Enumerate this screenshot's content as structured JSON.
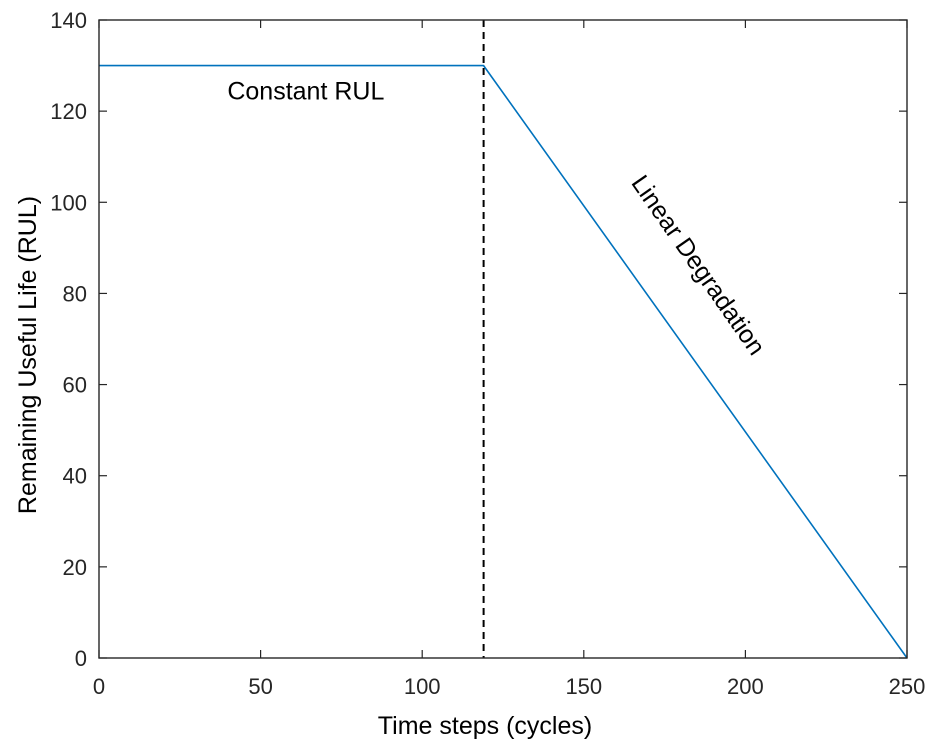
{
  "chart_data": {
    "type": "line",
    "xlabel": "Time steps (cycles)",
    "ylabel": "Remaining Useful Life (RUL)",
    "xlim": [
      0,
      250
    ],
    "ylim": [
      0,
      140
    ],
    "xticks": [
      0,
      50,
      100,
      150,
      200,
      250
    ],
    "yticks": [
      0,
      20,
      40,
      60,
      80,
      100,
      120,
      140
    ],
    "grid": false,
    "series": [
      {
        "color": "#0072BD",
        "x": [
          0,
          119,
          120,
          250
        ],
        "y": [
          130,
          130,
          129,
          0
        ]
      }
    ],
    "vertical_line": {
      "x": 119,
      "style": "dashed",
      "color": "#000000"
    },
    "annotations": [
      {
        "text": "Constant RUL",
        "x": 64,
        "y": 124,
        "rotation_deg": 0
      },
      {
        "text": "Linear Degradation",
        "x": 185,
        "y": 86,
        "rotation_deg": 55
      }
    ]
  }
}
